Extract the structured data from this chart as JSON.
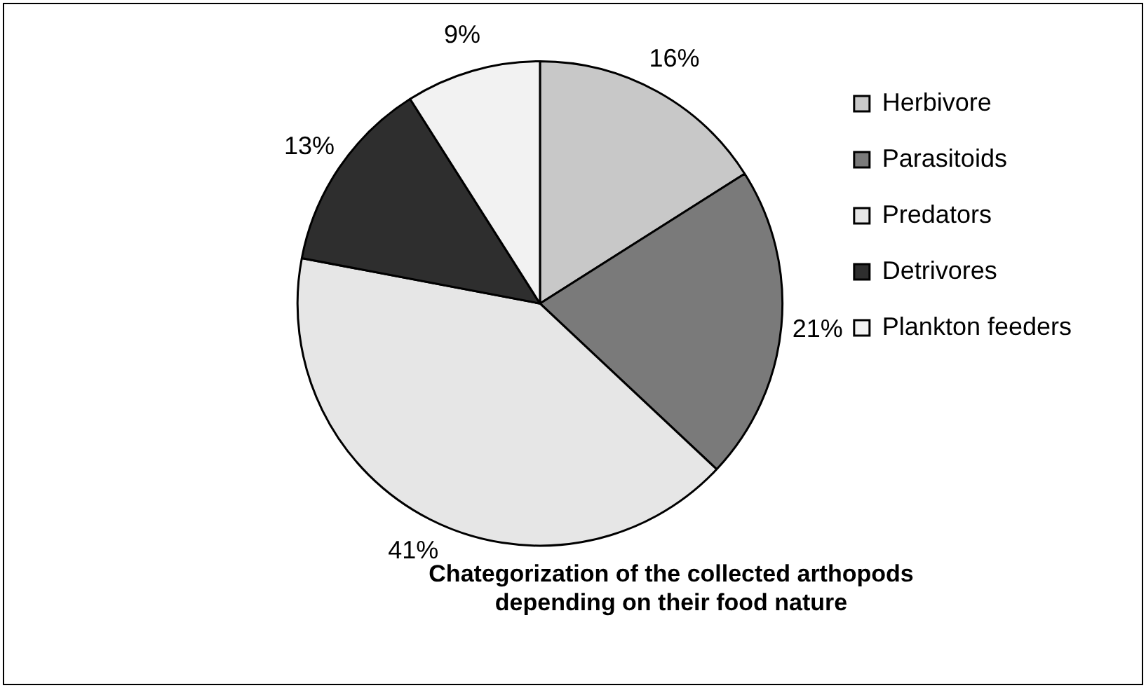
{
  "chart_data": {
    "type": "pie",
    "title": "Chategorization of the collected arthopods\ndepending on their food nature",
    "categories": [
      "Herbivore",
      "Parasitoids",
      "Predators",
      "Detrivores",
      "Plankton feeders"
    ],
    "values": [
      16,
      21,
      41,
      13,
      9
    ],
    "value_labels": [
      "16%",
      "21%",
      "41%",
      "13%",
      "9%"
    ],
    "colors": [
      "#c8c8c8",
      "#7a7a7a",
      "#e6e6e6",
      "#2e2e2e",
      "#f2f2f2"
    ],
    "legend": "right"
  }
}
